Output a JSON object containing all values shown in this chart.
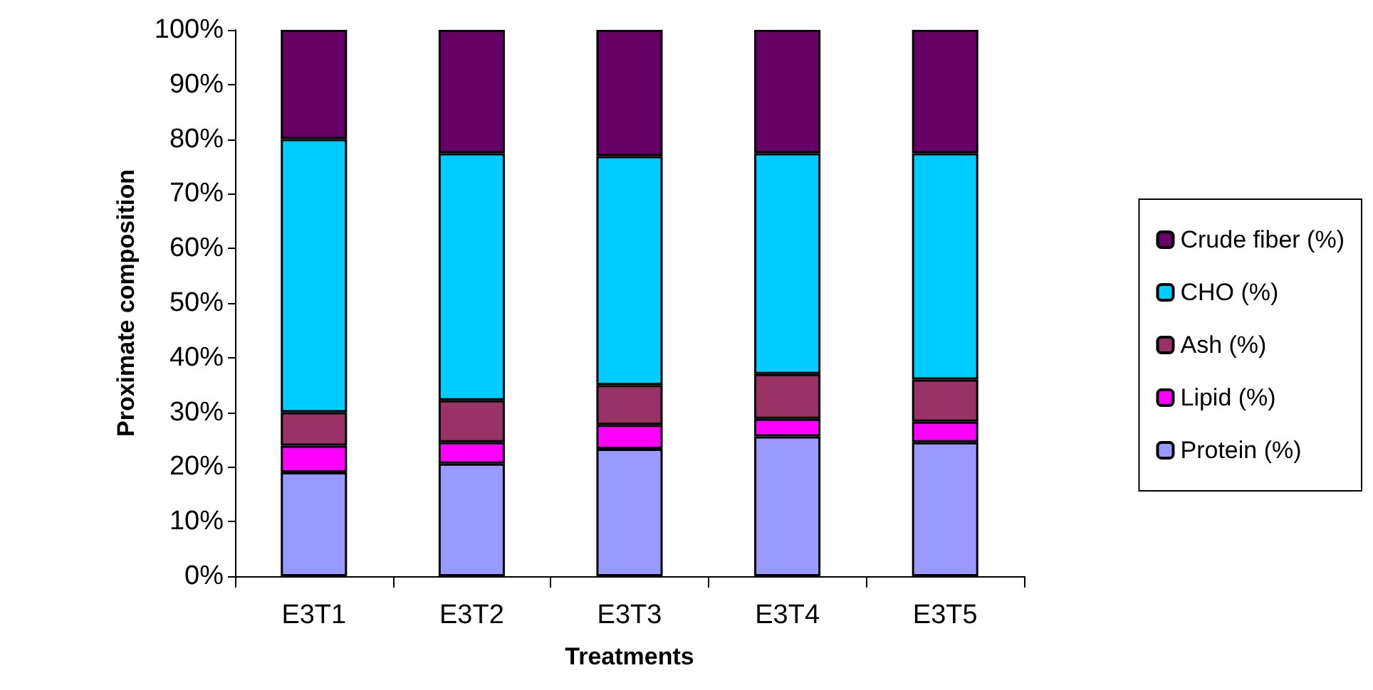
{
  "chart_data": {
    "type": "bar",
    "stacked": true,
    "xlabel": "Treatments",
    "ylabel": "Proximate composition",
    "categories": [
      "E3T1",
      "E3T2",
      "E3T3",
      "E3T4",
      "E3T5"
    ],
    "series": [
      {
        "name": "Protein (%)",
        "color": "#9999ff",
        "values": [
          19.0,
          20.6,
          23.3,
          25.6,
          24.5
        ]
      },
      {
        "name": "Lipid (%)",
        "color": "#ff00ff",
        "values": [
          4.9,
          3.9,
          4.4,
          3.2,
          3.8
        ]
      },
      {
        "name": "Ash (%)",
        "color": "#993366",
        "values": [
          6.1,
          7.7,
          7.3,
          8.2,
          7.7
        ]
      },
      {
        "name": "CHO (%)",
        "color": "#00ccff",
        "values": [
          50.0,
          45.2,
          41.9,
          40.4,
          41.4
        ]
      },
      {
        "name": "Crude fiber (%)",
        "color": "#660066",
        "values": [
          20.0,
          22.6,
          23.1,
          22.6,
          22.6
        ]
      }
    ],
    "ylim": [
      0,
      100
    ],
    "yticks": [
      {
        "value": 0,
        "label": "0%"
      },
      {
        "value": 10,
        "label": "10%"
      },
      {
        "value": 20,
        "label": "20%"
      },
      {
        "value": 30,
        "label": "30%"
      },
      {
        "value": 40,
        "label": "40%"
      },
      {
        "value": 50,
        "label": "50%"
      },
      {
        "value": 60,
        "label": "60%"
      },
      {
        "value": 70,
        "label": "70%"
      },
      {
        "value": 80,
        "label": "80%"
      },
      {
        "value": 90,
        "label": "90%"
      },
      {
        "value": 100,
        "label": "100%"
      }
    ],
    "grid": false,
    "legend": "right"
  }
}
